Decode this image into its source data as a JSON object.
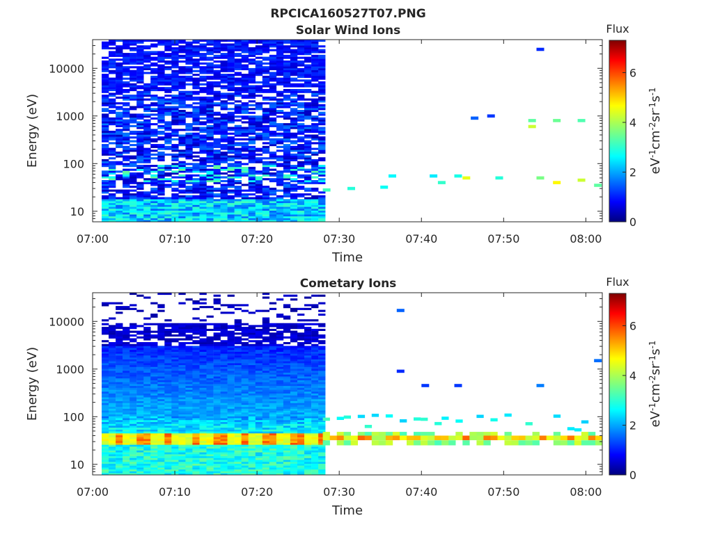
{
  "figure": {
    "title": "RPCICA160527T07.PNG"
  },
  "chart_data": [
    {
      "type": "heatmap",
      "title": "Solar Wind Ions",
      "xlabel": "Time",
      "ylabel": "Energy (eV)",
      "xlim": [
        "07:00",
        "08:02"
      ],
      "x_ticks": [
        "07:00",
        "07:10",
        "07:20",
        "07:30",
        "07:40",
        "07:50",
        "08:00"
      ],
      "y_scale": "log",
      "ylim": [
        6,
        40000
      ],
      "y_ticks": [
        "10",
        "100",
        "1000",
        "10000"
      ],
      "colorbar": {
        "title": "Flux",
        "label": "eV-1cm-2sr-1s-1",
        "range": [
          0,
          7.3
        ],
        "ticks": [
          "0",
          "2",
          "4",
          "6"
        ],
        "colormap": "jet"
      },
      "continuous_coverage": [
        "07:01",
        "07:27"
      ],
      "sparse_features": [
        {
          "time": "07:28",
          "energy": 28,
          "flux": 3.2
        },
        {
          "time": "07:31",
          "energy": 30,
          "flux": 3.0
        },
        {
          "time": "07:35",
          "energy": 32,
          "flux": 2.8
        },
        {
          "time": "07:36",
          "energy": 55,
          "flux": 2.7
        },
        {
          "time": "07:41",
          "energy": 55,
          "flux": 2.6
        },
        {
          "time": "07:42",
          "energy": 40,
          "flux": 3.1
        },
        {
          "time": "07:44",
          "energy": 55,
          "flux": 2.9
        },
        {
          "time": "07:45",
          "energy": 50,
          "flux": 4.4
        },
        {
          "time": "07:46",
          "energy": 900,
          "flux": 1.6
        },
        {
          "time": "07:48",
          "energy": 1000,
          "flux": 1.3
        },
        {
          "time": "07:49",
          "energy": 50,
          "flux": 3.0
        },
        {
          "time": "07:53",
          "energy": 800,
          "flux": 3.4
        },
        {
          "time": "07:53",
          "energy": 600,
          "flux": 4.2
        },
        {
          "time": "07:54",
          "energy": 25000,
          "flux": 1.2
        },
        {
          "time": "07:54",
          "energy": 50,
          "flux": 3.6
        },
        {
          "time": "07:56",
          "energy": 800,
          "flux": 3.5
        },
        {
          "time": "07:56",
          "energy": 40,
          "flux": 4.6
        },
        {
          "time": "07:59",
          "energy": 800,
          "flux": 3.3
        },
        {
          "time": "07:59",
          "energy": 45,
          "flux": 4.2
        },
        {
          "time": "08:01",
          "energy": 35,
          "flux": 3.4
        }
      ]
    },
    {
      "type": "heatmap",
      "title": "Cometary Ions",
      "xlabel": "Time",
      "ylabel": "Energy (eV)",
      "xlim": [
        "07:00",
        "08:02"
      ],
      "x_ticks": [
        "07:00",
        "07:10",
        "07:20",
        "07:30",
        "07:40",
        "07:50",
        "08:00"
      ],
      "y_scale": "log",
      "ylim": [
        6,
        40000
      ],
      "y_ticks": [
        "10",
        "100",
        "1000",
        "10000"
      ],
      "colorbar": {
        "title": "Flux",
        "label": "eV-1cm-2sr-1s-1",
        "range": [
          0,
          7.3
        ],
        "ticks": [
          "0",
          "2",
          "4",
          "6"
        ],
        "colormap": "jet"
      },
      "continuous_coverage": [
        "07:01",
        "07:27"
      ],
      "peak_band_energy_eV": [
        25,
        45
      ],
      "peak_flux": 5.5,
      "sparse_features": [
        {
          "time": "07:37",
          "energy": 17000,
          "flux": 1.6
        },
        {
          "time": "07:37",
          "energy": 900,
          "flux": 1.2
        },
        {
          "time": "07:40",
          "energy": 450,
          "flux": 1.3
        },
        {
          "time": "07:44",
          "energy": 450,
          "flux": 1.3
        },
        {
          "time": "07:54",
          "energy": 450,
          "flux": 1.8
        },
        {
          "time": "08:01",
          "energy": 1500,
          "flux": 1.7
        }
      ]
    }
  ]
}
